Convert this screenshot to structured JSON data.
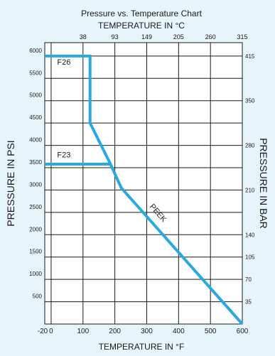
{
  "chart_data": {
    "type": "line",
    "title": "Pressure vs. Temperature Chart",
    "xlabel_top": "TEMPERATURE IN °C",
    "xlabel_bottom": "TEMPERATURE IN °F",
    "ylabel_left": "PRESSURE IN PSI",
    "ylabel_right": "PRESSURE IN BAR",
    "x_range": [
      -20,
      600
    ],
    "y_range": [
      0,
      6300
    ],
    "grid": true,
    "x_ticks_f": [
      -20,
      0,
      100,
      200,
      300,
      400,
      500,
      600
    ],
    "x_ticks_c": [
      {
        "label": "38",
        "at_f": 100
      },
      {
        "label": "93",
        "at_f": 200
      },
      {
        "label": "149",
        "at_f": 300
      },
      {
        "label": "205",
        "at_f": 400
      },
      {
        "label": "260",
        "at_f": 500
      },
      {
        "label": "315",
        "at_f": 600
      }
    ],
    "y_ticks_psi": [
      500,
      1000,
      1500,
      2000,
      2500,
      3000,
      3500,
      4000,
      4500,
      5000,
      5500,
      6000
    ],
    "y_ticks_bar": [
      {
        "label": "415",
        "at_psi": 6000
      },
      {
        "label": "350",
        "at_psi": 5000
      },
      {
        "label": "280",
        "at_psi": 4000
      },
      {
        "label": "210",
        "at_psi": 3000
      },
      {
        "label": "140",
        "at_psi": 2000
      },
      {
        "label": "105",
        "at_psi": 1500
      },
      {
        "label": "70",
        "at_psi": 1000
      },
      {
        "label": "35",
        "at_psi": 500
      }
    ],
    "line_color": "#2aa9e0",
    "series": [
      {
        "name": "F26",
        "x": [
          -20,
          122,
          122,
          185,
          220,
          600
        ],
        "y": [
          6000,
          6000,
          4500,
          3600,
          3050,
          0
        ]
      },
      {
        "name": "F23",
        "x": [
          -20,
          185
        ],
        "y": [
          3580,
          3580
        ]
      }
    ],
    "annotations": [
      {
        "text": "F26",
        "x": 40,
        "y": 5810,
        "rotate": 0
      },
      {
        "text": "F23",
        "x": 40,
        "y": 3730,
        "rotate": 0
      },
      {
        "text": "PEEK",
        "x": 330,
        "y": 2450,
        "rotate": 49
      }
    ]
  }
}
